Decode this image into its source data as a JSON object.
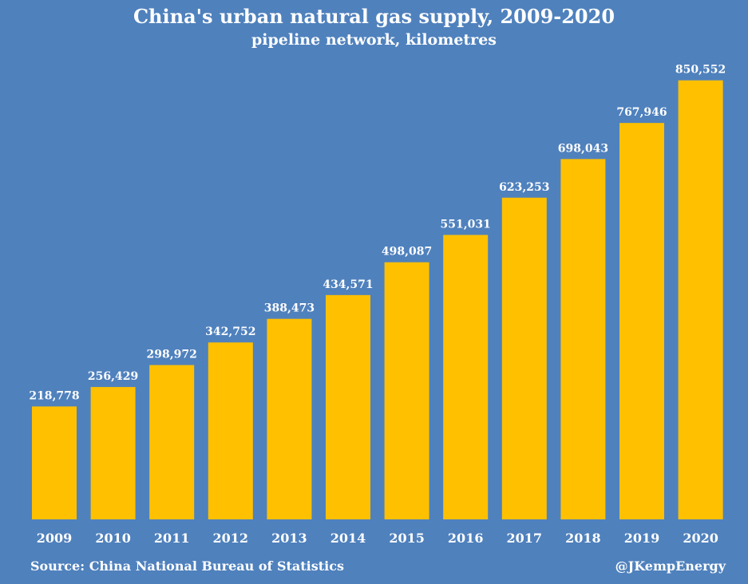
{
  "chart_data": {
    "type": "bar",
    "title": "China's urban natural gas supply, 2009-2020",
    "subtitle": "pipeline network, kilometres",
    "categories": [
      "2009",
      "2010",
      "2011",
      "2012",
      "2013",
      "2014",
      "2015",
      "2016",
      "2017",
      "2018",
      "2019",
      "2020"
    ],
    "values": [
      218778,
      256429,
      298972,
      342752,
      388473,
      434571,
      498087,
      551031,
      623253,
      698043,
      767946,
      850552
    ],
    "value_labels": [
      "218,778",
      "256,429",
      "298,972",
      "342,752",
      "388,473",
      "434,571",
      "498,087",
      "551,031",
      "623,253",
      "698,043",
      "767,946",
      "850,552"
    ],
    "ylim": [
      0,
      1000000
    ],
    "grid": false,
    "bar_color": "#ffc000",
    "background_color": "#4f81bd"
  },
  "footer": {
    "source": "Source: China National Bureau of Statistics",
    "credit": "@JKempEnergy"
  }
}
